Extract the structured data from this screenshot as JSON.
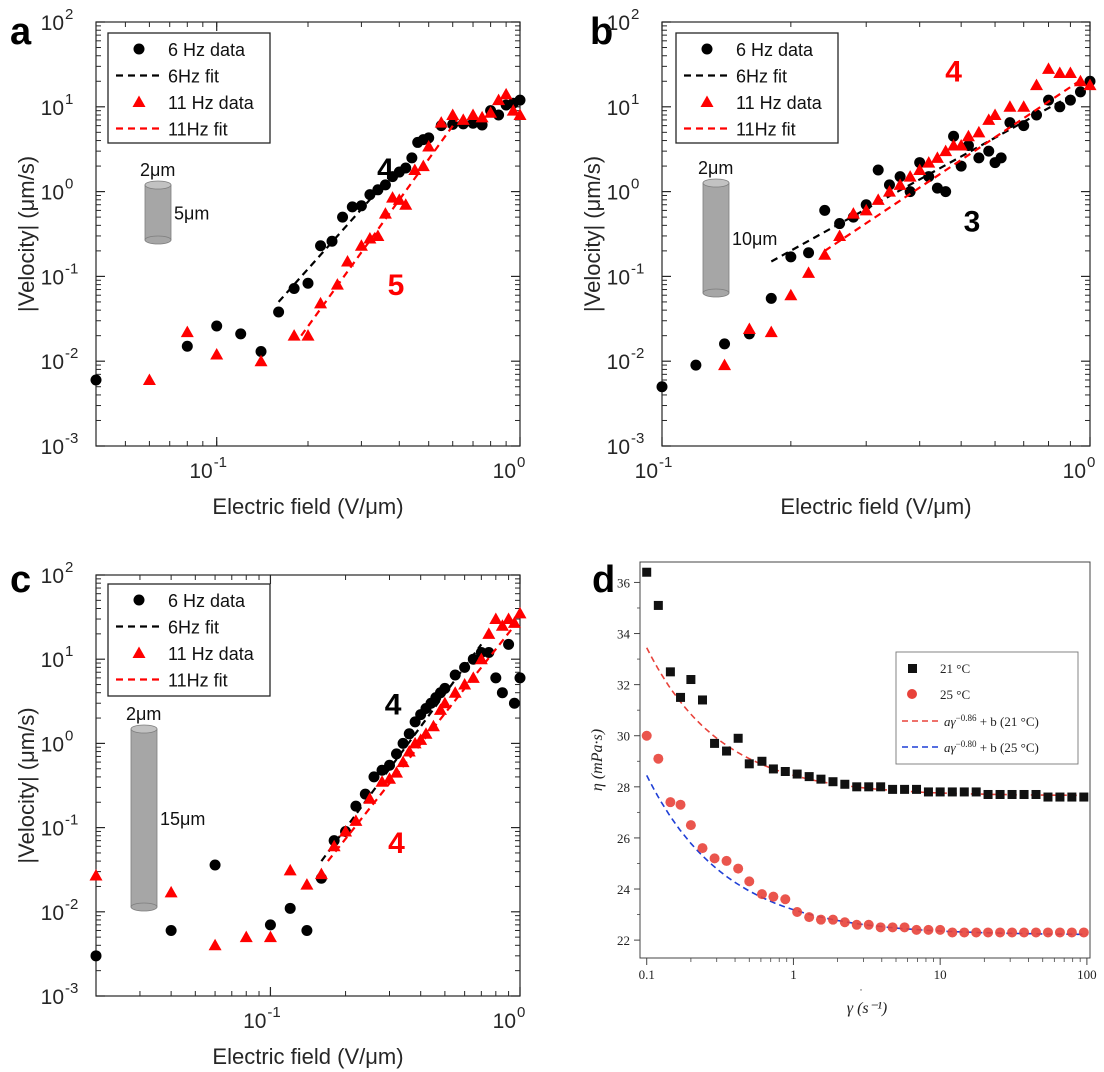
{
  "figure": {
    "panel_letters": [
      "a",
      "b",
      "c",
      "d"
    ]
  },
  "colors": {
    "black": "#000000",
    "red": "#ff0000",
    "d_red": "#e8423a",
    "d_blue": "#1f3fd6",
    "cylinder": "#a6a6a6"
  },
  "chart_data": [
    {
      "panel": "a",
      "type": "scatter",
      "xlabel": "Electric field (V/μm)",
      "ylabel": "|Velocity| (μm/s)",
      "xscale": "log",
      "yscale": "log",
      "xlim": [
        0.04,
        1.0
      ],
      "ylim": [
        0.001,
        100
      ],
      "xticks": [
        {
          "v": 0.1,
          "b": "10",
          "e": "-1"
        },
        {
          "v": 1,
          "b": "10",
          "e": "0"
        }
      ],
      "yticks": [
        {
          "v": 0.001,
          "b": "10",
          "e": "-3"
        },
        {
          "v": 0.01,
          "b": "10",
          "e": "-2"
        },
        {
          "v": 0.1,
          "b": "10",
          "e": "-1"
        },
        {
          "v": 1,
          "b": "10",
          "e": "0"
        },
        {
          "v": 10,
          "b": "10",
          "e": "1"
        },
        {
          "v": 100,
          "b": "10",
          "e": "2"
        }
      ],
      "legend": {
        "placement": "top-left",
        "entries": [
          "6 Hz data",
          "6Hz fit",
          "11 Hz data",
          "11Hz fit"
        ]
      },
      "cylinder": {
        "diameter_label": "2μm",
        "length_label": "5μm"
      },
      "annotations": [
        {
          "text": "4",
          "color": "black",
          "x": 0.36,
          "y": 1.4
        },
        {
          "text": "5",
          "color": "red",
          "x": 0.39,
          "y": 0.06
        }
      ],
      "series": [
        {
          "name": "6 Hz data",
          "marker": "circle",
          "color": "black",
          "x": [
            0.04,
            0.08,
            0.1,
            0.12,
            0.14,
            0.16,
            0.18,
            0.2,
            0.22,
            0.24,
            0.26,
            0.28,
            0.3,
            0.32,
            0.34,
            0.36,
            0.38,
            0.4,
            0.42,
            0.44,
            0.46,
            0.48,
            0.5,
            0.55,
            0.6,
            0.65,
            0.7,
            0.75,
            0.8,
            0.85,
            0.9,
            0.95,
            1.0
          ],
          "y": [
            0.006,
            0.015,
            0.026,
            0.021,
            0.013,
            0.038,
            0.072,
            0.083,
            0.23,
            0.26,
            0.5,
            0.66,
            0.68,
            0.92,
            1.05,
            1.2,
            1.5,
            1.7,
            1.9,
            2.5,
            3.8,
            4.1,
            4.3,
            6.0,
            6.2,
            6.3,
            6.4,
            6.1,
            9.0,
            8.0,
            10.5,
            11.0,
            12.0
          ]
        },
        {
          "name": "6Hz fit",
          "line": "dashed",
          "color": "black",
          "x": [
            0.16,
            0.38
          ],
          "y": [
            0.05,
            1.6
          ]
        },
        {
          "name": "11 Hz data",
          "marker": "triangle",
          "color": "red",
          "x": [
            0.06,
            0.08,
            0.1,
            0.14,
            0.18,
            0.2,
            0.22,
            0.25,
            0.27,
            0.3,
            0.32,
            0.34,
            0.36,
            0.38,
            0.4,
            0.42,
            0.45,
            0.48,
            0.5,
            0.55,
            0.6,
            0.65,
            0.7,
            0.75,
            0.8,
            0.85,
            0.9,
            0.95,
            1.0
          ],
          "y": [
            0.006,
            0.022,
            0.012,
            0.01,
            0.02,
            0.02,
            0.048,
            0.08,
            0.15,
            0.23,
            0.28,
            0.3,
            0.55,
            0.85,
            0.8,
            0.7,
            1.8,
            2.0,
            3.4,
            6.5,
            8.0,
            7.0,
            8.0,
            7.5,
            8.5,
            12.0,
            14.0,
            9.0,
            8.0
          ]
        },
        {
          "name": "11Hz fit",
          "line": "dashed",
          "color": "red",
          "x": [
            0.19,
            0.62
          ],
          "y": [
            0.02,
            7.0
          ]
        }
      ]
    },
    {
      "panel": "b",
      "type": "scatter",
      "xlabel": "Electric field (V/μm)",
      "ylabel": "|Velocity| (μm/s)",
      "xscale": "log",
      "yscale": "log",
      "xlim": [
        0.1,
        1.0
      ],
      "ylim": [
        0.001,
        100
      ],
      "xticks": [
        {
          "v": 0.1,
          "b": "10",
          "e": "-1"
        },
        {
          "v": 1,
          "b": "10",
          "e": "0"
        }
      ],
      "yticks": [
        {
          "v": 0.001,
          "b": "10",
          "e": "-3"
        },
        {
          "v": 0.01,
          "b": "10",
          "e": "-2"
        },
        {
          "v": 0.1,
          "b": "10",
          "e": "-1"
        },
        {
          "v": 1,
          "b": "10",
          "e": "0"
        },
        {
          "v": 10,
          "b": "10",
          "e": "1"
        },
        {
          "v": 100,
          "b": "10",
          "e": "2"
        }
      ],
      "legend": {
        "placement": "top-left",
        "entries": [
          "6 Hz data",
          "6Hz fit",
          "11 Hz data",
          "11Hz fit"
        ]
      },
      "cylinder": {
        "diameter_label": "2μm",
        "length_label": "10μm"
      },
      "annotations": [
        {
          "text": "4",
          "color": "red",
          "x": 0.48,
          "y": 20
        },
        {
          "text": "3",
          "color": "black",
          "x": 0.53,
          "y": 0.34
        }
      ],
      "series": [
        {
          "name": "6 Hz data",
          "marker": "circle",
          "color": "black",
          "x": [
            0.1,
            0.12,
            0.14,
            0.16,
            0.18,
            0.2,
            0.22,
            0.24,
            0.26,
            0.28,
            0.3,
            0.32,
            0.34,
            0.36,
            0.38,
            0.4,
            0.42,
            0.44,
            0.46,
            0.48,
            0.5,
            0.52,
            0.55,
            0.58,
            0.6,
            0.62,
            0.65,
            0.7,
            0.75,
            0.8,
            0.85,
            0.9,
            0.95,
            1.0
          ],
          "y": [
            0.005,
            0.009,
            0.016,
            0.021,
            0.055,
            0.17,
            0.19,
            0.6,
            0.42,
            0.5,
            0.7,
            1.8,
            1.2,
            1.5,
            1.0,
            2.2,
            1.5,
            1.1,
            1.0,
            4.5,
            2.0,
            3.5,
            2.5,
            3.0,
            2.2,
            2.5,
            6.5,
            6.0,
            8.0,
            12.0,
            10.0,
            12.0,
            15.0,
            20.0
          ]
        },
        {
          "name": "6Hz fit",
          "line": "dashed",
          "color": "black",
          "x": [
            0.18,
            1.0
          ],
          "y": [
            0.15,
            18.0
          ]
        },
        {
          "name": "11 Hz data",
          "marker": "triangle",
          "color": "red",
          "x": [
            0.14,
            0.16,
            0.18,
            0.2,
            0.22,
            0.24,
            0.26,
            0.28,
            0.3,
            0.32,
            0.34,
            0.36,
            0.38,
            0.4,
            0.42,
            0.44,
            0.46,
            0.48,
            0.5,
            0.52,
            0.55,
            0.58,
            0.6,
            0.65,
            0.7,
            0.75,
            0.8,
            0.85,
            0.9,
            0.95,
            1.0
          ],
          "y": [
            0.009,
            0.024,
            0.022,
            0.06,
            0.11,
            0.18,
            0.3,
            0.55,
            0.6,
            0.8,
            1.0,
            1.2,
            1.5,
            1.8,
            2.2,
            2.5,
            3.0,
            3.5,
            3.5,
            4.5,
            5.0,
            7.0,
            8.0,
            10.0,
            10.0,
            18.0,
            28.0,
            25.0,
            25.0,
            20.0,
            18.0
          ]
        },
        {
          "name": "11Hz fit",
          "line": "dashed",
          "color": "red",
          "x": [
            0.24,
            0.97
          ],
          "y": [
            0.2,
            22.0
          ]
        }
      ]
    },
    {
      "panel": "c",
      "type": "scatter",
      "xlabel": "Electric field (V/μm)",
      "ylabel": "|Velocity| (μm/s)",
      "xscale": "log",
      "yscale": "log",
      "xlim": [
        0.02,
        1.0
      ],
      "ylim": [
        0.001,
        100
      ],
      "xticks": [
        {
          "v": 0.1,
          "b": "10",
          "e": "-1"
        },
        {
          "v": 1,
          "b": "10",
          "e": "0"
        }
      ],
      "yticks": [
        {
          "v": 0.001,
          "b": "10",
          "e": "-3"
        },
        {
          "v": 0.01,
          "b": "10",
          "e": "-2"
        },
        {
          "v": 0.1,
          "b": "10",
          "e": "-1"
        },
        {
          "v": 1,
          "b": "10",
          "e": "0"
        },
        {
          "v": 10,
          "b": "10",
          "e": "1"
        },
        {
          "v": 100,
          "b": "10",
          "e": "2"
        }
      ],
      "legend": {
        "placement": "top-left",
        "entries": [
          "6 Hz data",
          "6Hz fit",
          "11 Hz data",
          "11Hz fit"
        ]
      },
      "cylinder": {
        "diameter_label": "2μm",
        "length_label": "15μm"
      },
      "annotations": [
        {
          "text": "4",
          "color": "black",
          "x": 0.31,
          "y": 2.2
        },
        {
          "text": "4",
          "color": "red",
          "x": 0.32,
          "y": 0.05
        }
      ],
      "series": [
        {
          "name": "6 Hz data",
          "marker": "circle",
          "color": "black",
          "x": [
            0.02,
            0.04,
            0.06,
            0.1,
            0.12,
            0.14,
            0.16,
            0.18,
            0.2,
            0.22,
            0.24,
            0.26,
            0.28,
            0.3,
            0.32,
            0.34,
            0.36,
            0.38,
            0.4,
            0.42,
            0.44,
            0.46,
            0.48,
            0.5,
            0.55,
            0.6,
            0.65,
            0.7,
            0.75,
            0.8,
            0.85,
            0.9,
            0.95,
            1.0
          ],
          "y": [
            0.003,
            0.006,
            0.036,
            0.007,
            0.011,
            0.006,
            0.025,
            0.07,
            0.09,
            0.18,
            0.25,
            0.4,
            0.48,
            0.55,
            0.75,
            1.0,
            1.3,
            1.8,
            2.2,
            2.6,
            3.0,
            3.5,
            4.0,
            4.5,
            6.5,
            8.0,
            10.0,
            12.0,
            12.0,
            6.0,
            4.0,
            15.0,
            3.0,
            6.0
          ]
        },
        {
          "name": "6Hz fit",
          "line": "dashed",
          "color": "black",
          "x": [
            0.16,
            0.7
          ],
          "y": [
            0.04,
            15.0
          ]
        },
        {
          "name": "11 Hz data",
          "marker": "triangle",
          "color": "red",
          "x": [
            0.02,
            0.04,
            0.06,
            0.08,
            0.1,
            0.12,
            0.14,
            0.16,
            0.18,
            0.2,
            0.22,
            0.25,
            0.28,
            0.3,
            0.32,
            0.34,
            0.36,
            0.38,
            0.4,
            0.42,
            0.45,
            0.48,
            0.5,
            0.55,
            0.6,
            0.65,
            0.7,
            0.75,
            0.8,
            0.85,
            0.9,
            0.95,
            1.0
          ],
          "y": [
            0.027,
            0.017,
            0.004,
            0.005,
            0.005,
            0.031,
            0.021,
            0.028,
            0.06,
            0.09,
            0.12,
            0.22,
            0.35,
            0.38,
            0.45,
            0.6,
            0.8,
            1.0,
            1.1,
            1.3,
            1.6,
            2.5,
            3.0,
            4.0,
            5.0,
            6.0,
            10.0,
            20.0,
            30.0,
            25.0,
            30.0,
            27.0,
            35.0
          ]
        },
        {
          "name": "11Hz fit",
          "line": "dashed",
          "color": "red",
          "x": [
            0.17,
            0.95
          ],
          "y": [
            0.04,
            25.0
          ]
        }
      ]
    },
    {
      "panel": "d",
      "type": "scatter",
      "xlabel": "γ (s⁻¹)",
      "ylabel": "η (mPa·s)",
      "xscale": "log",
      "yscale": "linear",
      "xlim": [
        0.09,
        105
      ],
      "ylim": [
        21.3,
        36.8
      ],
      "xticks": [
        {
          "v": 0.1,
          "t": "0.1"
        },
        {
          "v": 1,
          "t": "1"
        },
        {
          "v": 10,
          "t": "10"
        },
        {
          "v": 100,
          "t": "100"
        }
      ],
      "yticks": [
        22,
        24,
        26,
        28,
        30,
        32,
        34,
        36
      ],
      "legend": {
        "placement": "top-right",
        "entries": [
          "21 °C",
          "25 °C",
          "aγ⁻⁰·⁸⁶ + b (21 °C)",
          "aγ⁻⁰·⁸⁰ + b (25 °C)"
        ],
        "fit21": {
          "pre": "a",
          "sym": "γ",
          "exp": "−0.86",
          "post": " + b (21 °C)"
        },
        "fit25": {
          "pre": "a",
          "sym": "γ",
          "exp": "−0.80",
          "post": " + b (25 °C)"
        }
      },
      "series": [
        {
          "name": "21 °C",
          "marker": "square",
          "color": "black",
          "x": [
            0.1,
            0.12,
            0.145,
            0.17,
            0.2,
            0.24,
            0.29,
            0.35,
            0.42,
            0.5,
            0.61,
            0.73,
            0.88,
            1.06,
            1.28,
            1.54,
            1.86,
            2.24,
            2.7,
            3.26,
            3.93,
            4.74,
            5.72,
            6.9,
            8.32,
            10.0,
            12.1,
            14.6,
            17.6,
            21.2,
            25.6,
            30.9,
            37.3,
            45.0,
            54.3,
            65.5,
            79.0,
            95.3
          ],
          "y": [
            36.4,
            35.1,
            32.5,
            31.5,
            32.2,
            31.4,
            29.7,
            29.4,
            29.9,
            28.9,
            29.0,
            28.7,
            28.6,
            28.5,
            28.4,
            28.3,
            28.2,
            28.1,
            28.0,
            28.0,
            28.0,
            27.9,
            27.9,
            27.9,
            27.8,
            27.8,
            27.8,
            27.8,
            27.8,
            27.7,
            27.7,
            27.7,
            27.7,
            27.7,
            27.6,
            27.6,
            27.6,
            27.6
          ]
        },
        {
          "name": "25 °C",
          "marker": "circle",
          "color": "red",
          "x": [
            0.1,
            0.12,
            0.145,
            0.17,
            0.2,
            0.24,
            0.29,
            0.35,
            0.42,
            0.5,
            0.61,
            0.73,
            0.88,
            1.06,
            1.28,
            1.54,
            1.86,
            2.24,
            2.7,
            3.26,
            3.93,
            4.74,
            5.72,
            6.9,
            8.32,
            10.0,
            12.1,
            14.6,
            17.6,
            21.2,
            25.6,
            30.9,
            37.3,
            45.0,
            54.3,
            65.5,
            79.0,
            95.3
          ],
          "y": [
            30.0,
            29.1,
            27.4,
            27.3,
            26.5,
            25.6,
            25.2,
            25.1,
            24.8,
            24.3,
            23.8,
            23.7,
            23.6,
            23.1,
            22.9,
            22.8,
            22.8,
            22.7,
            22.6,
            22.6,
            22.5,
            22.5,
            22.5,
            22.4,
            22.4,
            22.4,
            22.3,
            22.3,
            22.3,
            22.3,
            22.3,
            22.3,
            22.3,
            22.3,
            22.3,
            22.3,
            22.3,
            22.3
          ]
        },
        {
          "name": "fit 21",
          "line": "dashed",
          "color": "red",
          "model": {
            "a": 0.8,
            "n": -0.86,
            "b": 27.65
          }
        },
        {
          "name": "fit 25",
          "line": "dashed",
          "color": "blue",
          "model": {
            "a": 0.99,
            "n": -0.8,
            "b": 22.2
          }
        }
      ]
    }
  ]
}
